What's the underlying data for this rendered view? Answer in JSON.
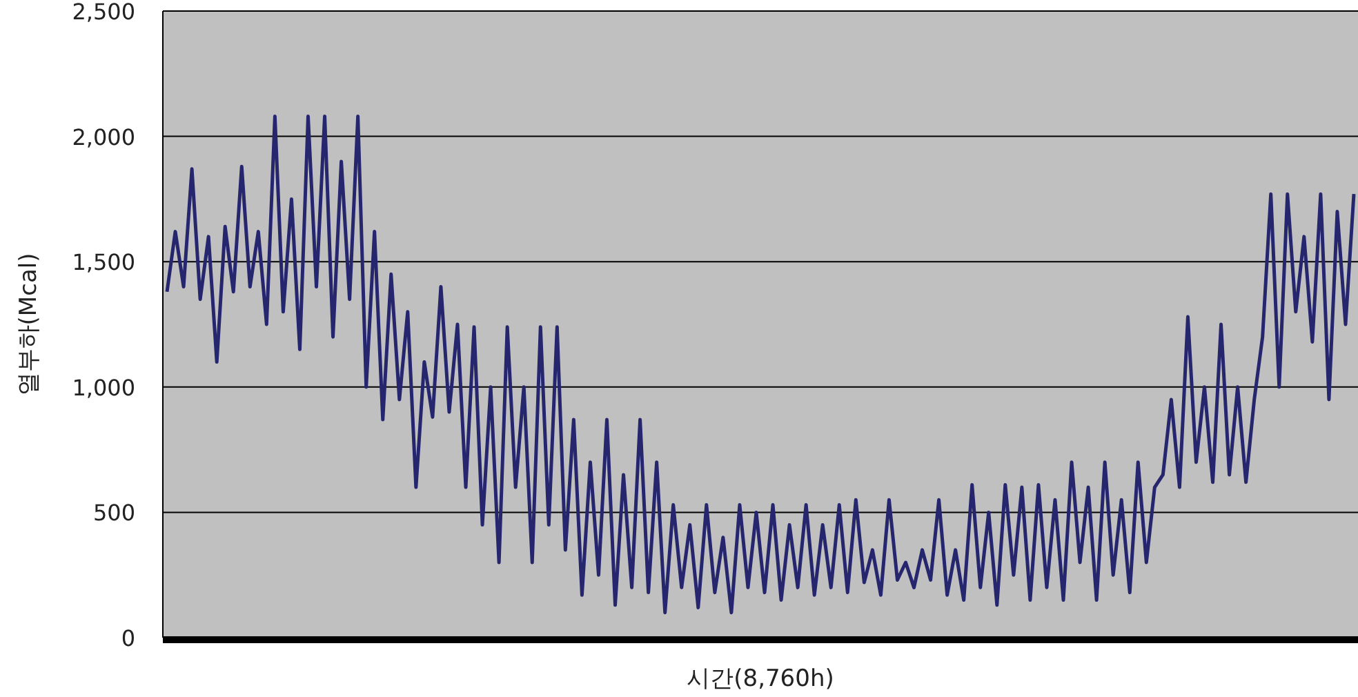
{
  "chart_data": {
    "type": "line",
    "xlabel": "시간(8,760h)",
    "ylabel": "열부하(Mcal)",
    "color": "#26266e",
    "grid": "y",
    "ylim": [
      0,
      2500
    ],
    "yticks": [
      {
        "value": 0,
        "label": "0"
      },
      {
        "value": 500,
        "label": "500"
      },
      {
        "value": 1000,
        "label": "1,000"
      },
      {
        "value": 1500,
        "label": "1,500"
      },
      {
        "value": 2000,
        "label": "2,000"
      },
      {
        "value": 2500,
        "label": "2,500"
      }
    ],
    "categories": [
      null,
      null,
      null,
      null,
      null,
      null,
      null,
      null,
      null,
      null,
      null,
      null,
      null,
      null,
      null,
      null,
      null,
      null,
      null,
      null,
      null,
      null,
      null,
      null,
      null,
      null,
      null,
      null,
      null,
      null,
      null,
      null,
      null,
      null,
      null,
      null,
      null,
      null,
      null,
      null,
      null,
      null,
      null,
      null,
      null,
      null,
      null,
      null,
      null,
      null,
      null,
      null,
      null,
      null,
      null,
      null,
      null,
      null,
      null,
      null,
      null,
      null,
      null,
      null,
      null,
      null,
      null,
      null,
      null,
      null,
      null,
      null,
      null,
      null,
      null,
      null,
      null,
      null,
      null,
      null,
      null,
      null,
      null,
      null,
      null,
      null,
      null,
      null,
      null,
      null,
      null,
      null,
      null,
      null,
      null,
      null,
      null,
      null,
      null,
      null,
      null,
      null,
      null,
      null,
      null,
      null,
      null,
      null,
      null,
      null,
      null,
      null,
      null,
      null,
      null,
      null,
      null,
      null,
      null,
      null,
      null,
      null,
      null,
      null,
      null,
      null,
      null,
      null,
      null,
      null,
      null,
      null,
      null,
      null,
      null,
      null,
      null,
      null,
      null,
      null,
      null,
      null,
      null,
      null
    ],
    "values": [
      1380,
      1620,
      1400,
      1870,
      1350,
      1600,
      1100,
      1640,
      1380,
      1880,
      1400,
      1620,
      1250,
      2080,
      1300,
      1750,
      1150,
      2080,
      1400,
      2080,
      1200,
      1900,
      1350,
      2080,
      1000,
      1620,
      870,
      1450,
      950,
      1300,
      600,
      1100,
      880,
      1400,
      900,
      1250,
      600,
      1240,
      450,
      1000,
      300,
      1240,
      600,
      1000,
      300,
      1240,
      450,
      1240,
      350,
      870,
      170,
      700,
      250,
      870,
      130,
      650,
      200,
      870,
      180,
      700,
      100,
      530,
      200,
      450,
      120,
      530,
      180,
      400,
      100,
      530,
      200,
      500,
      180,
      530,
      150,
      450,
      200,
      530,
      170,
      450,
      200,
      530,
      180,
      550,
      220,
      350,
      170,
      550,
      230,
      300,
      200,
      350,
      230,
      550,
      170,
      350,
      150,
      610,
      200,
      500,
      130,
      610,
      250,
      600,
      150,
      610,
      200,
      550,
      150,
      700,
      300,
      600,
      150,
      700,
      250,
      550,
      180,
      700,
      300,
      600,
      650,
      950,
      600,
      1280,
      700,
      1000,
      620,
      1250,
      650,
      1000,
      620,
      950,
      1200,
      1770,
      1000,
      1770,
      1300,
      1600,
      1180,
      1770,
      950,
      1700,
      1250,
      1770
    ]
  }
}
